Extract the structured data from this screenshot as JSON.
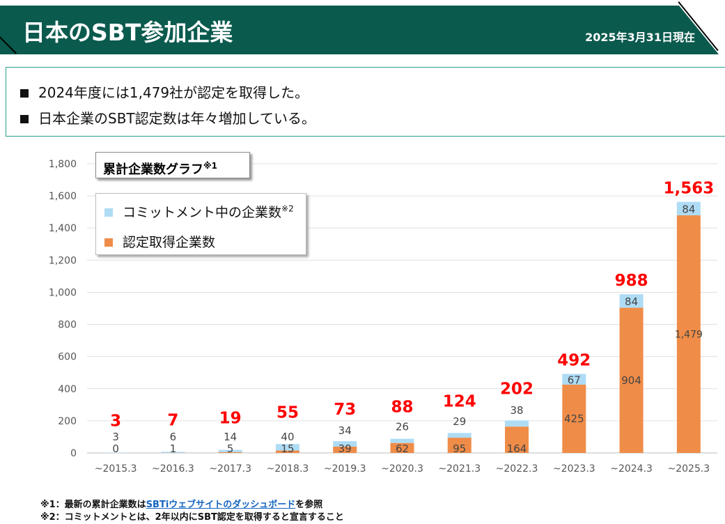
{
  "header": {
    "title": "日本のSBT参加企業",
    "date": "2025年3月31日現在"
  },
  "summary": [
    "2024年度には1,479社が認定を取得した。",
    "日本企業のSBT認定数は年々増加している。"
  ],
  "chart_box_title": "累計企業数グラフ",
  "chart_box_title_note": "※1",
  "colors": {
    "header": "#0b5a4e",
    "commit": "#aedcf5",
    "certified": "#ef8c48",
    "total_label": "#ff0000"
  },
  "chart_data": {
    "type": "bar",
    "stacked": true,
    "categories": [
      "~2015.3",
      "~2016.3",
      "~2017.3",
      "~2018.3",
      "~2019.3",
      "~2020.3",
      "~2021.3",
      "~2022.3",
      "~2023.3",
      "~2024.3",
      "~2025.3"
    ],
    "series": [
      {
        "name": "認定取得企業数",
        "values": [
          0,
          1,
          5,
          15,
          39,
          62,
          95,
          164,
          425,
          904,
          1479
        ]
      },
      {
        "name": "コミットメント中の企業数",
        "name_note": "※2",
        "values": [
          3,
          6,
          14,
          40,
          34,
          26,
          29,
          38,
          67,
          84,
          84
        ]
      }
    ],
    "totals": [
      "3",
      "7",
      "19",
      "55",
      "73",
      "88",
      "124",
      "202",
      "492",
      "988",
      "1,563"
    ],
    "certified_labels": [
      "0",
      "1",
      "5",
      "15",
      "39",
      "62",
      "95",
      "164",
      "425",
      "904",
      "1,479"
    ],
    "yticks": [
      "0",
      "200",
      "400",
      "600",
      "800",
      "1,000",
      "1,200",
      "1,400",
      "1,600",
      "1,800"
    ],
    "ylim": [
      0,
      1800
    ],
    "grid": true,
    "legend": "top-left"
  },
  "notes": {
    "n1_prefix": "※1：最新の累計企業数は",
    "n1_link": "SBTiウェブサイトのダッシュボード",
    "n1_suffix": "を参照",
    "n2": "※2：コミットメントとは、2年以内にSBT認定を取得すると宣言すること"
  }
}
